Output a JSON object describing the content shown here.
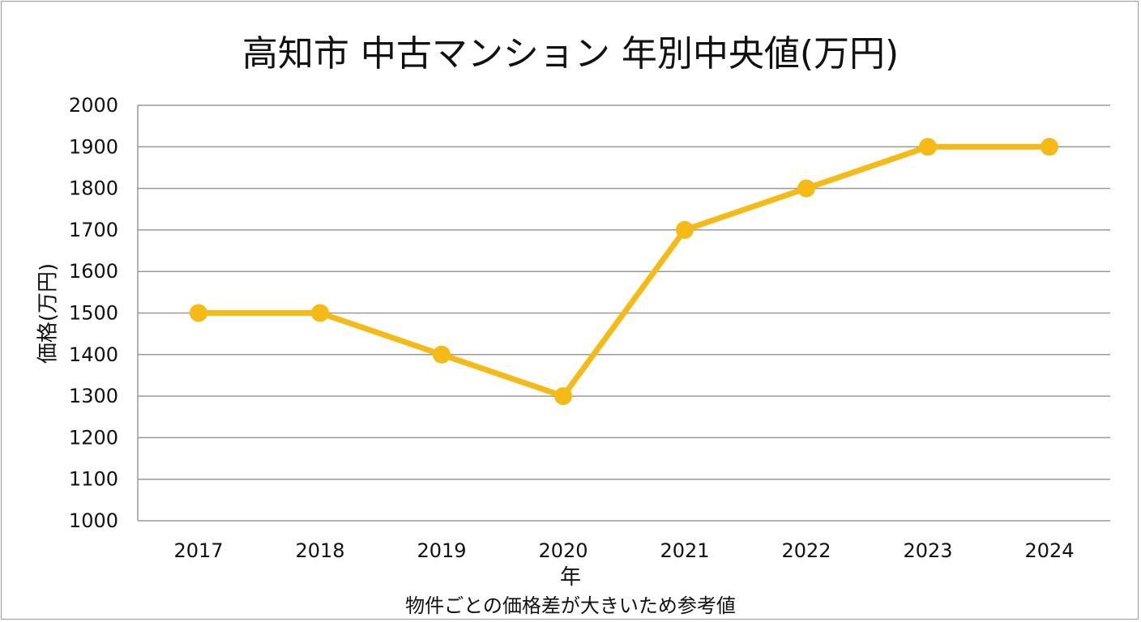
{
  "chart_data": {
    "type": "line",
    "title": "高知市 中古マンション 年別中央値(万円)",
    "xlabel": "年",
    "ylabel": "価格(万円)",
    "note": "物件ごとの価格差が大きいため参考値",
    "categories": [
      "2017",
      "2018",
      "2019",
      "2020",
      "2021",
      "2022",
      "2023",
      "2024"
    ],
    "series": [
      {
        "values": [
          1500,
          1500,
          1400,
          1300,
          1700,
          1800,
          1900,
          1900
        ],
        "color": "#F5BA16"
      }
    ],
    "ylim": [
      1000,
      2000
    ],
    "yticks": [
      1000,
      1100,
      1200,
      1300,
      1400,
      1500,
      1600,
      1700,
      1800,
      1900,
      2000
    ],
    "grid": true,
    "legend": "none",
    "gridColor": "#999999"
  }
}
